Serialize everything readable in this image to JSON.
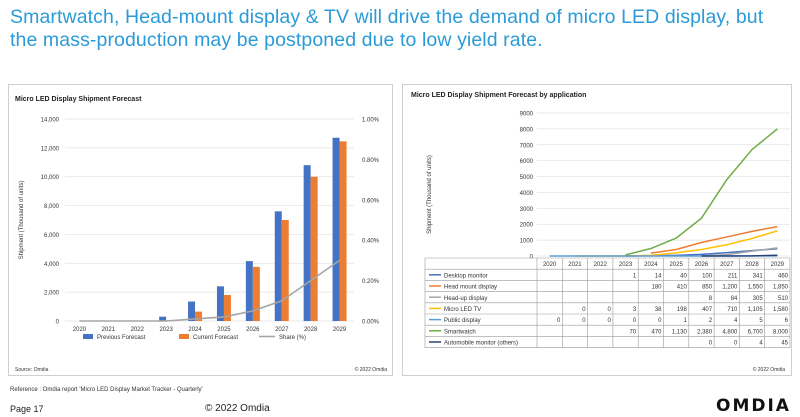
{
  "headline": "Smartwatch, Head-mount display & TV will drive the demand of micro LED display, but the mass-production may be postponed due to low yield rate.",
  "reference": "Reference : Omdia report 'Micro LED Display Market Tracker - Quarterly'",
  "footer": {
    "page": "Page 17",
    "copyright": "© 2022 Omdia",
    "logo": "OMDIA"
  },
  "colors": {
    "headline": "#2a9bd8",
    "previous": "#4472c4",
    "current": "#ed7d31",
    "share": "#a5a5a5"
  },
  "chart_data": [
    {
      "type": "bar",
      "title": "Micro LED Display Shipment Forecast",
      "ylabel": "Shipment (Thousand of units)",
      "ylim": [
        0,
        14000
      ],
      "y2lim": [
        0,
        0.01
      ],
      "yticks": [
        "0",
        "2,000",
        "4,000",
        "6,000",
        "8,000",
        "10,000",
        "12,000",
        "14,000"
      ],
      "y2ticks": [
        "0.00%",
        "0.20%",
        "0.40%",
        "0.60%",
        "0.80%",
        "1.00%"
      ],
      "categories": [
        "2020",
        "2021",
        "2022",
        "2023",
        "2024",
        "2025",
        "2026",
        "2027",
        "2028",
        "2029"
      ],
      "series": [
        {
          "name": "Previous Forecast",
          "kind": "bar",
          "color": "#4472c4",
          "values": [
            0,
            0,
            0,
            300,
            1350,
            2400,
            4150,
            7600,
            10800,
            12700
          ]
        },
        {
          "name": "Current Forecast",
          "kind": "bar",
          "color": "#ed7d31",
          "values": [
            0,
            0,
            0,
            50,
            650,
            1800,
            3750,
            7000,
            10000,
            12450
          ]
        },
        {
          "name": "Share (%)",
          "kind": "line",
          "axis": "right",
          "color": "#a5a5a5",
          "values": [
            0,
            0,
            0,
            0,
            0.0001,
            0.0002,
            0.0005,
            0.001,
            0.002,
            0.003
          ]
        }
      ],
      "source": "Source: Omdia",
      "copyright": "© 2022 Omdia",
      "legend": "bottom",
      "grid": true
    },
    {
      "type": "line",
      "title": "Micro LED Display Shipment Forecast by application",
      "ylabel": "Shipment (Thousand of units)",
      "ylim": [
        0,
        9000
      ],
      "yticks": [
        "0",
        "1000",
        "2000",
        "3000",
        "4000",
        "5000",
        "6000",
        "7000",
        "8000",
        "9000"
      ],
      "categories": [
        "2020",
        "2021",
        "2022",
        "2023",
        "2024",
        "2025",
        "2026",
        "2027",
        "2028",
        "2029"
      ],
      "series": [
        {
          "name": "Desktop monitor",
          "color": "#4472c4",
          "values": [
            null,
            null,
            null,
            1,
            14,
            40,
            100,
            211,
            341,
            460
          ],
          "labels": [
            "",
            "",
            "",
            "1",
            "14",
            "40",
            "100",
            "211",
            "341",
            "460"
          ]
        },
        {
          "name": "Head mount display",
          "color": "#ed7d31",
          "values": [
            null,
            null,
            null,
            null,
            180,
            410,
            850,
            1200,
            1550,
            1850
          ],
          "labels": [
            "",
            "",
            "",
            "",
            "180",
            "410",
            "850",
            "1,200",
            "1,550",
            "1,850"
          ]
        },
        {
          "name": "Head-up display",
          "color": "#a5a5a5",
          "values": [
            null,
            null,
            null,
            null,
            null,
            null,
            8,
            84,
            305,
            510
          ],
          "labels": [
            "",
            "",
            "",
            "",
            "",
            "",
            "8",
            "84",
            "305",
            "510"
          ]
        },
        {
          "name": "Micro LED TV",
          "color": "#ffc000",
          "values": [
            null,
            0,
            0,
            3,
            38,
            198,
            407,
            710,
            1105,
            1580
          ],
          "labels": [
            "",
            "0",
            "0",
            "3",
            "38",
            "198",
            "407",
            "710",
            "1,105",
            "1,580"
          ]
        },
        {
          "name": "Public display",
          "color": "#5b9bd5",
          "values": [
            0,
            0,
            0,
            0,
            0,
            1,
            2,
            4,
            5,
            6
          ],
          "labels": [
            "0",
            "0",
            "0",
            "0",
            "0",
            "1",
            "2",
            "4",
            "5",
            "6"
          ]
        },
        {
          "name": "Smartwatch",
          "color": "#70ad47",
          "values": [
            null,
            null,
            null,
            70,
            470,
            1130,
            2380,
            4800,
            6700,
            8000
          ],
          "labels": [
            "",
            "",
            "",
            "70",
            "470",
            "1,130",
            "2,380",
            "4,800",
            "6,700",
            "8,000"
          ]
        },
        {
          "name": "Automobile monitor (others)",
          "color": "#264478",
          "values": [
            null,
            null,
            null,
            null,
            null,
            null,
            0,
            0,
            4,
            45
          ],
          "labels": [
            "",
            "",
            "",
            "",
            "",
            "",
            "0",
            "0",
            "4",
            "45"
          ]
        }
      ],
      "copyright": "© 2022 Omdia",
      "grid": true
    }
  ]
}
